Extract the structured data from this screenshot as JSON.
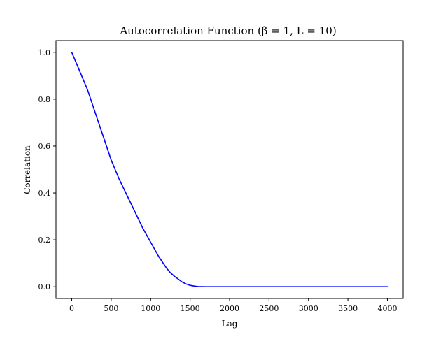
{
  "chart_data": {
    "type": "line",
    "title": "Autocorrelation Function (β = 1, L = 10)",
    "xlabel": "Lag",
    "ylabel": "Correlation",
    "xlim": [
      -200,
      4200
    ],
    "ylim": [
      -0.05,
      1.05
    ],
    "xticks": [
      0,
      500,
      1000,
      1500,
      2000,
      2500,
      3000,
      3500,
      4000
    ],
    "yticks": [
      0.0,
      0.2,
      0.4,
      0.6,
      0.8,
      1.0
    ],
    "xtick_labels": [
      "0",
      "500",
      "1000",
      "1500",
      "2000",
      "2500",
      "3000",
      "3500",
      "4000"
    ],
    "ytick_labels": [
      "0.0",
      "0.2",
      "0.4",
      "0.6",
      "0.8",
      "1.0"
    ],
    "grid": false,
    "legend": null,
    "series": [
      {
        "color": "#0000ff",
        "x": [
          0,
          50,
          100,
          150,
          200,
          250,
          300,
          350,
          400,
          450,
          500,
          550,
          600,
          700,
          800,
          900,
          1000,
          1100,
          1200,
          1250,
          1300,
          1400,
          1450,
          1500,
          1550,
          1600,
          1650,
          1700,
          1800,
          1900,
          2000,
          2500,
          3000,
          3500,
          4000
        ],
        "y": [
          1.0,
          0.96,
          0.92,
          0.88,
          0.84,
          0.79,
          0.74,
          0.69,
          0.64,
          0.59,
          0.54,
          0.5,
          0.46,
          0.39,
          0.32,
          0.25,
          0.19,
          0.13,
          0.08,
          0.06,
          0.045,
          0.02,
          0.012,
          0.006,
          0.003,
          0.001,
          0.0005,
          0.0002,
          0.0,
          0.0,
          0.0,
          0.0,
          0.0,
          0.0,
          0.0
        ]
      }
    ]
  }
}
